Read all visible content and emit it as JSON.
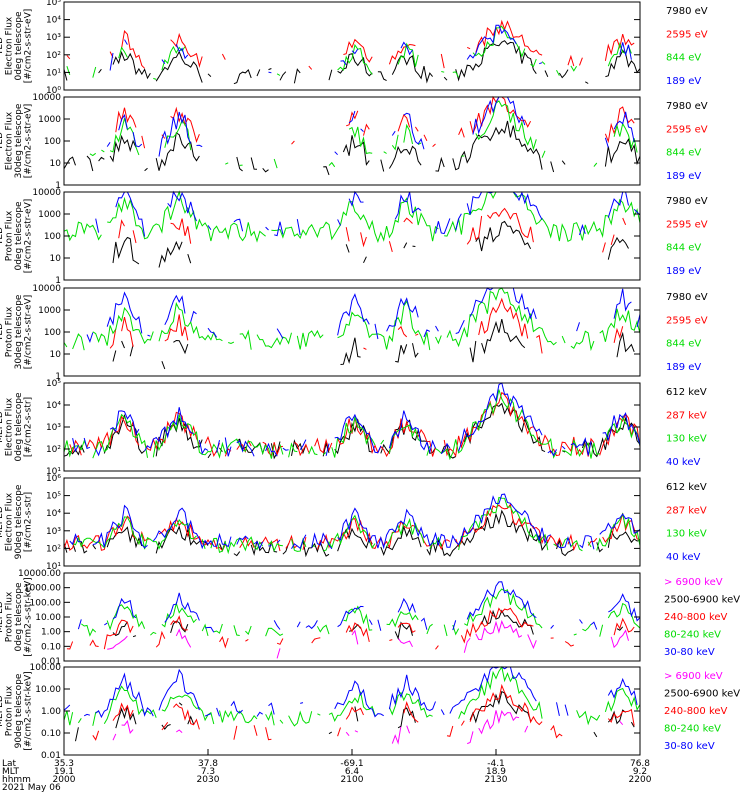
{
  "chart_data": [
    {
      "type": "line",
      "ylabel": [
        "TED",
        "Electron Flux",
        "0deg telescope",
        "[#/cm2-s-str-eV]"
      ],
      "ylog": true,
      "ylim": [
        1,
        100000
      ],
      "yticks": [
        "10⁰",
        "10¹",
        "10²",
        "10³",
        "10⁴",
        "10⁵"
      ],
      "series": [
        {
          "name": "7980 eV",
          "color": "#000000",
          "level": 0.8,
          "fill": 0.55
        },
        {
          "name": "2595 eV",
          "color": "#ff0000",
          "level": 1.6,
          "fill": 0.3
        },
        {
          "name": "844 eV",
          "color": "#00dd00",
          "level": 1.0,
          "fill": 0.25
        },
        {
          "name": "189 eV",
          "color": "#0000ff",
          "level": 1.0,
          "fill": 0.05
        }
      ]
    },
    {
      "type": "line",
      "ylabel": [
        "TED",
        "Electron Flux",
        "30deg telescope",
        "[#/cm2-s-str-eV]"
      ],
      "ylog": true,
      "ylim": [
        1,
        10000
      ],
      "yticks": [
        "1",
        "10",
        "100",
        "1000",
        "10000"
      ],
      "series": [
        {
          "name": "7980 eV",
          "color": "#000000",
          "level": 0.9,
          "fill": 0.55
        },
        {
          "name": "2595 eV",
          "color": "#ff0000",
          "level": 1.9,
          "fill": 0.35
        },
        {
          "name": "844 eV",
          "color": "#00dd00",
          "level": 1.2,
          "fill": 0.3
        },
        {
          "name": "189 eV",
          "color": "#0000ff",
          "level": 1.5,
          "fill": 0.2
        }
      ]
    },
    {
      "type": "line",
      "ylabel": [
        "TED",
        "Proton Flux",
        "0deg telescope",
        "[#/cm2-s-str-eV]"
      ],
      "ylog": true,
      "ylim": [
        1,
        10000
      ],
      "yticks": [
        "1",
        "10",
        "100",
        "1000",
        "10000"
      ],
      "series": [
        {
          "name": "7980 eV",
          "color": "#000000",
          "level": 0.6,
          "fill": 0.05
        },
        {
          "name": "2595 eV",
          "color": "#ff0000",
          "level": 1.3,
          "fill": 0.05
        },
        {
          "name": "844 eV",
          "color": "#00dd00",
          "level": 2.2,
          "fill": 0.95
        },
        {
          "name": "189 eV",
          "color": "#0000ff",
          "level": 2.4,
          "fill": 0.4
        }
      ]
    },
    {
      "type": "line",
      "ylabel": [
        "TED",
        "Proton Flux",
        "30deg telescope",
        "[#/cm2-s-str-eV]"
      ],
      "ylog": true,
      "ylim": [
        1,
        10000
      ],
      "yticks": [
        "1",
        "10",
        "100",
        "1000",
        "10000"
      ],
      "series": [
        {
          "name": "7980 eV",
          "color": "#000000",
          "level": 0.3,
          "fill": 0.02
        },
        {
          "name": "2595 eV",
          "color": "#ff0000",
          "level": 1.0,
          "fill": 0.02
        },
        {
          "name": "844 eV",
          "color": "#00dd00",
          "level": 1.6,
          "fill": 0.8
        },
        {
          "name": "189 eV",
          "color": "#0000ff",
          "level": 2.0,
          "fill": 0.35
        }
      ]
    },
    {
      "type": "line",
      "ylabel": [
        "MEPED",
        "Electron Flux",
        "0deg telescope",
        "[#/cm2-s-str]"
      ],
      "ylog": true,
      "ylim": [
        10,
        100000
      ],
      "yticks": [
        "10¹",
        "10²",
        "10³",
        "10⁴",
        "10⁵"
      ],
      "series": [
        {
          "name": "612 keV",
          "color": "#000000",
          "level": 2.0,
          "fill": 0.75
        },
        {
          "name": "287 keV",
          "color": "#ff0000",
          "level": 2.1,
          "fill": 0.8
        },
        {
          "name": "130 keV",
          "color": "#00dd00",
          "level": 2.0,
          "fill": 0.85
        },
        {
          "name": "40 keV",
          "color": "#0000ff",
          "level": 2.1,
          "fill": 0.7
        }
      ]
    },
    {
      "type": "line",
      "ylabel": [
        "MEPED",
        "Electron Flux",
        "90deg telescope",
        "[#/cm2-s-str]"
      ],
      "ylog": true,
      "ylim": [
        10,
        1000000
      ],
      "yticks": [
        "10¹",
        "10²",
        "10³",
        "10⁴",
        "10⁵",
        "10⁶"
      ],
      "series": [
        {
          "name": "612 keV",
          "color": "#000000",
          "level": 2.0,
          "fill": 0.75
        },
        {
          "name": "287 keV",
          "color": "#ff0000",
          "level": 2.3,
          "fill": 0.8
        },
        {
          "name": "130 keV",
          "color": "#00dd00",
          "level": 2.2,
          "fill": 0.85
        },
        {
          "name": "40 keV",
          "color": "#0000ff",
          "level": 2.4,
          "fill": 0.8
        }
      ]
    },
    {
      "type": "line",
      "ylabel": [
        "MEPED",
        "Proton Flux",
        "0deg telescope",
        "[#/cm2-s-str-keV]"
      ],
      "ylog": true,
      "ylim": [
        0.01,
        10000
      ],
      "yticks": [
        "0.01",
        "0.10",
        "1.00",
        "10.00",
        "100.00",
        "1000.00",
        "10000.00"
      ],
      "series": [
        {
          "name": "> 6900 keV",
          "color": "#ff00ff",
          "level": -1.4,
          "fill": 0.1
        },
        {
          "name": "2500-6900 keV",
          "color": "#000000",
          "level": -0.7,
          "fill": 0.1
        },
        {
          "name": "240-800 keV",
          "color": "#ff0000",
          "level": -0.8,
          "fill": 0.35
        },
        {
          "name": "80-240 keV",
          "color": "#00dd00",
          "level": 0.1,
          "fill": 0.6
        },
        {
          "name": "30-80 keV",
          "color": "#0000ff",
          "level": 0.4,
          "fill": 0.45
        }
      ]
    },
    {
      "type": "line",
      "ylabel": [
        "MEPED",
        "Proton Flux",
        "90deg telescope",
        "[#/cm2-s-str-keV]"
      ],
      "ylog": true,
      "ylim": [
        0.01,
        1000
      ],
      "yticks": [
        "0.01",
        "0.10",
        "1.00",
        "10.00",
        "100.00"
      ],
      "series": [
        {
          "name": "> 6900 keV",
          "color": "#ff00ff",
          "level": -1.5,
          "fill": 0.08
        },
        {
          "name": "2500-6900 keV",
          "color": "#000000",
          "level": -0.8,
          "fill": 0.12
        },
        {
          "name": "240-800 keV",
          "color": "#ff0000",
          "level": -0.7,
          "fill": 0.35
        },
        {
          "name": "80-240 keV",
          "color": "#00dd00",
          "level": 0.1,
          "fill": 0.7
        },
        {
          "name": "30-80 keV",
          "color": "#0000ff",
          "level": 0.6,
          "fill": 0.55
        }
      ]
    }
  ],
  "x_axis": {
    "row_labels": [
      "Lat",
      "MLT",
      "hhmm",
      "2021 May 06"
    ],
    "ticks": [
      {
        "lat": "35.3",
        "mlt": "19.1",
        "hhmm": "2000",
        "t": 0
      },
      {
        "lat": "37.8",
        "mlt": "7.3",
        "hhmm": "2030",
        "t": 30
      },
      {
        "lat": "-69.1",
        "mlt": "6.4",
        "hhmm": "2100",
        "t": 60
      },
      {
        "lat": "-4.1",
        "mlt": "18.9",
        "hhmm": "2130",
        "t": 90
      },
      {
        "lat": "76.8",
        "mlt": "9.2",
        "hhmm": "2200",
        "t": 120
      }
    ]
  }
}
